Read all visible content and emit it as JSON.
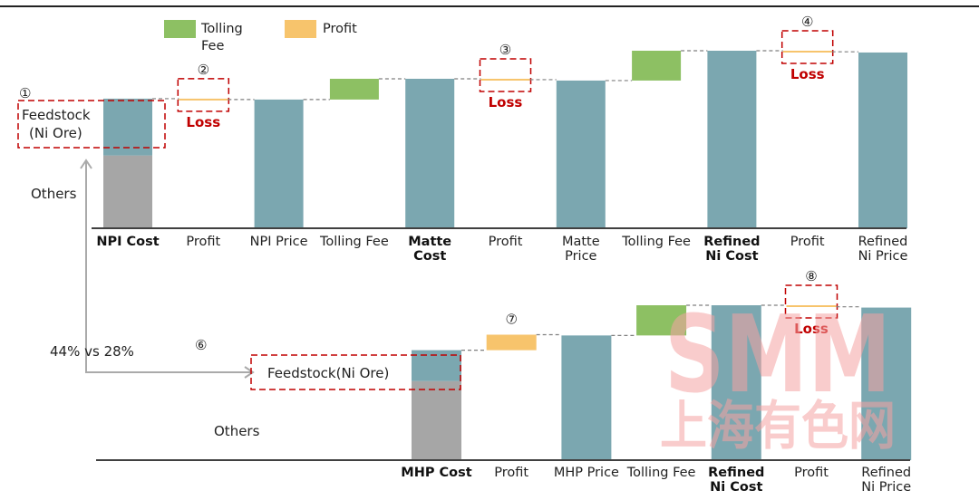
{
  "legend": [
    {
      "label_line1": "Tolling",
      "label_line2": "Fee",
      "color": "#8dc063"
    },
    {
      "label_line1": "Profit",
      "label_line2": "",
      "color": "#f7c46c"
    }
  ],
  "colors": {
    "feedstock": "#7ba7b0",
    "others": "#a6a6a6",
    "price": "#7ba7b0",
    "tolling": "#8dc063",
    "profit": "#f7c46c",
    "highlight": "#c00000",
    "connector": "#7f7f7f"
  },
  "chart_data": [
    {
      "type": "bar",
      "subtype": "waterfall",
      "title": "",
      "units": "relative (Refined Ni Cost = 100)",
      "categories": [
        {
          "line1": "NPI Cost",
          "line2": "",
          "bold": true
        },
        {
          "line1": "Profit",
          "line2": "",
          "bold": false
        },
        {
          "line1": "NPI Price",
          "line2": "",
          "bold": false
        },
        {
          "line1": "Tolling Fee",
          "line2": "",
          "bold": false
        },
        {
          "line1": "Matte",
          "line2": "Cost",
          "bold": true
        },
        {
          "line1": "Profit",
          "line2": "",
          "bold": false
        },
        {
          "line1": "Matte",
          "line2": "Price",
          "bold": false
        },
        {
          "line1": "Tolling Fee",
          "line2": "",
          "bold": false
        },
        {
          "line1": "Refined",
          "line2": "Ni Cost",
          "bold": true
        },
        {
          "line1": "Profit",
          "line2": "",
          "bold": false
        },
        {
          "line1": "Refined",
          "line2": "Ni Price",
          "bold": false
        }
      ],
      "bars": [
        {
          "kind": "stack",
          "segments": [
            {
              "name": "Others",
              "value": 41
            },
            {
              "name": "Feedstock (Ni Ore)",
              "value": 32
            }
          ]
        },
        {
          "kind": "profit",
          "base": 73,
          "value": -0.5,
          "annotation": "②",
          "note": "Loss"
        },
        {
          "kind": "price",
          "base": 0,
          "value": 72.5
        },
        {
          "kind": "tolling",
          "base": 72.5,
          "value": 11.7
        },
        {
          "kind": "price",
          "base": 0,
          "value": 84.2
        },
        {
          "kind": "profit",
          "base": 84.2,
          "value": -0.5,
          "annotation": "③",
          "note": "Loss"
        },
        {
          "kind": "price",
          "base": 0,
          "value": 83.2
        },
        {
          "kind": "tolling",
          "base": 83.2,
          "value": 16.8
        },
        {
          "kind": "price",
          "base": 0,
          "value": 100
        },
        {
          "kind": "profit",
          "base": 100,
          "value": -0.6,
          "annotation": "④",
          "note": "Loss"
        },
        {
          "kind": "price",
          "base": 0,
          "value": 99
        }
      ],
      "ylim": [
        0,
        100
      ],
      "grid": false,
      "legend_position": "top-left"
    },
    {
      "type": "bar",
      "subtype": "waterfall",
      "title": "",
      "units": "relative (Refined Ni Cost = 100)",
      "categories": [
        {
          "line1": "MHP Cost",
          "line2": "",
          "bold": true
        },
        {
          "line1": "Profit",
          "line2": "",
          "bold": false
        },
        {
          "line1": "MHP Price",
          "line2": "",
          "bold": false
        },
        {
          "line1": "Tolling Fee",
          "line2": "",
          "bold": false
        },
        {
          "line1": "Refined",
          "line2": "Ni Cost",
          "bold": true
        },
        {
          "line1": "Profit",
          "line2": "",
          "bold": false
        },
        {
          "line1": "Refined",
          "line2": "Ni Price",
          "bold": false
        }
      ],
      "bars": [
        {
          "kind": "stack",
          "segments": [
            {
              "name": "Others",
              "value": 51
            },
            {
              "name": "Feedstock(Ni Ore)",
              "value": 20
            }
          ]
        },
        {
          "kind": "profit",
          "base": 71,
          "value": 10,
          "annotation": "⑦",
          "note": ""
        },
        {
          "kind": "price",
          "base": 0,
          "value": 80.5
        },
        {
          "kind": "tolling",
          "base": 80.5,
          "value": 19.5
        },
        {
          "kind": "price",
          "base": 0,
          "value": 100
        },
        {
          "kind": "profit",
          "base": 100,
          "value": -1,
          "annotation": "⑧",
          "note": "Loss"
        },
        {
          "kind": "price",
          "base": 0,
          "value": 98.5
        }
      ],
      "ylim": [
        0,
        100
      ],
      "grid": false
    }
  ],
  "annotations": {
    "npi_feedstock_label_line1": "Feedstock",
    "npi_feedstock_label_line2": "(Ni Ore)",
    "npi_feedstock_marker": "①",
    "npi_others_label": "Others",
    "mhp_feedstock_label": "Feedstock(Ni Ore)",
    "mhp_others_label": "Others",
    "comparison_text": "44% vs 28%",
    "comparison_marker": "⑥",
    "loss_label": "Loss"
  },
  "watermark": {
    "line1": "SMM",
    "line2": "上海有色网"
  }
}
